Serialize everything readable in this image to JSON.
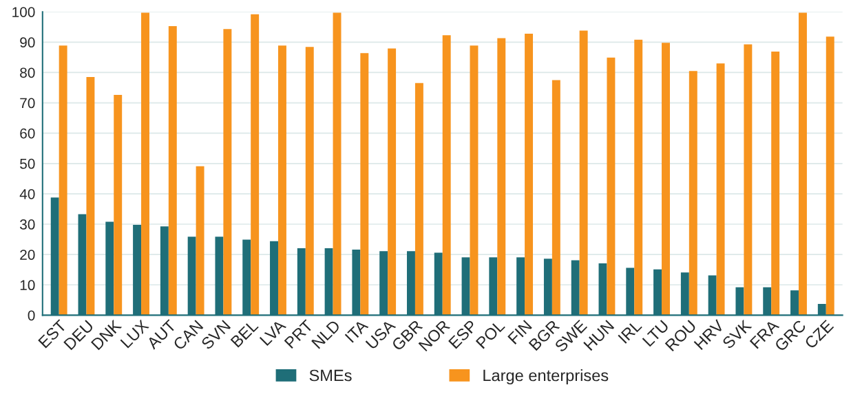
{
  "chart_data": {
    "type": "bar",
    "categories": [
      "EST",
      "DEU",
      "DNK",
      "LUX",
      "AUT",
      "CAN",
      "SVN",
      "BEL",
      "LVA",
      "PRT",
      "NLD",
      "ITA",
      "USA",
      "GBR",
      "NOR",
      "ESP",
      "POL",
      "FIN",
      "BGR",
      "SWE",
      "HUN",
      "IRL",
      "LTU",
      "ROU",
      "HRV",
      "SVK",
      "FRA",
      "GRC",
      "CZE"
    ],
    "series": [
      {
        "name": "SMEs",
        "color": "#1f6e78",
        "values": [
          38.8,
          33.3,
          30.8,
          29.8,
          29.3,
          25.9,
          25.9,
          24.9,
          24.4,
          22.1,
          22.1,
          21.6,
          21.1,
          21.1,
          20.6,
          19.1,
          19.1,
          19.1,
          18.6,
          18.1,
          17.1,
          15.6,
          15.1,
          14.1,
          13.1,
          9.2,
          9.2,
          8.2,
          3.7
        ]
      },
      {
        "name": "Large enterprises",
        "color": "#f7941e",
        "values": [
          88.9,
          78.5,
          72.6,
          99.7,
          95.3,
          49.1,
          94.3,
          99.2,
          88.9,
          88.4,
          99.7,
          86.4,
          87.9,
          76.5,
          92.3,
          88.9,
          91.3,
          92.8,
          77.5,
          93.8,
          84.9,
          90.8,
          89.8,
          80.5,
          83.0,
          89.3,
          86.9,
          99.7,
          91.8
        ]
      }
    ],
    "ylim": [
      0,
      100
    ],
    "yticks": [
      0,
      10,
      20,
      30,
      40,
      50,
      60,
      70,
      80,
      90,
      100
    ],
    "grid": "y",
    "legend": "bottom"
  }
}
